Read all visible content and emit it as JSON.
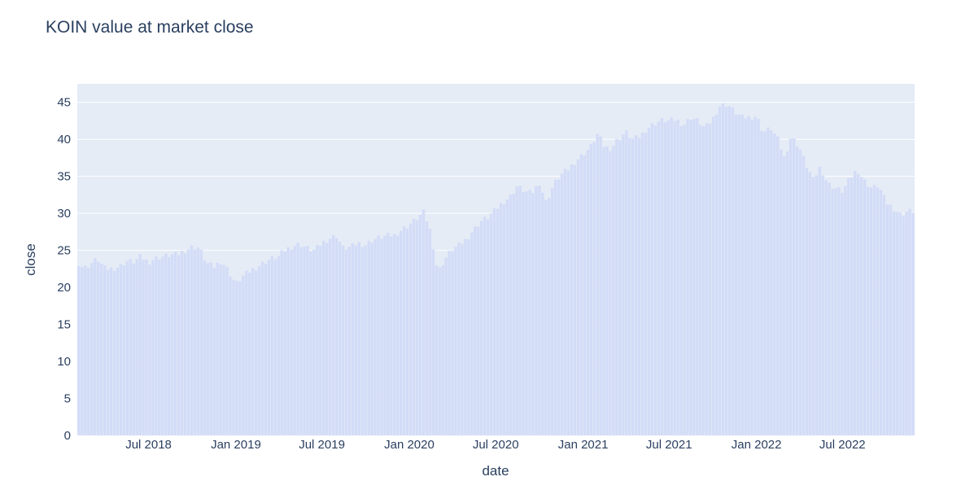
{
  "chart_data": {
    "type": "bar",
    "title": "KOIN value at market close",
    "xlabel": "date",
    "ylabel": "close",
    "xlim": [
      "2018-02-01",
      "2022-11-30"
    ],
    "ylim": [
      0,
      47.5
    ],
    "grid": true,
    "legend": "none",
    "colors": {
      "plot_bg": "#e5ecf6",
      "bar": "#d3dcf7",
      "bar_stroke": "#e5ecf6",
      "grid": "#ffffff",
      "text": "#2a3f5f"
    },
    "x_ticks": [
      {
        "date": "2018-07-01",
        "label": "Jul 2018"
      },
      {
        "date": "2019-01-01",
        "label": "Jan 2019"
      },
      {
        "date": "2019-07-01",
        "label": "Jul 2019"
      },
      {
        "date": "2020-01-01",
        "label": "Jan 2020"
      },
      {
        "date": "2020-07-01",
        "label": "Jul 2020"
      },
      {
        "date": "2021-01-01",
        "label": "Jan 2021"
      },
      {
        "date": "2021-07-01",
        "label": "Jul 2021"
      },
      {
        "date": "2022-01-01",
        "label": "Jan 2022"
      },
      {
        "date": "2022-07-01",
        "label": "Jul 2022"
      }
    ],
    "y_ticks": [
      0,
      5,
      10,
      15,
      20,
      25,
      30,
      35,
      40,
      45
    ],
    "series": [
      {
        "x": [
          "2018-02-01",
          "2018-02-15",
          "2018-03-01",
          "2018-03-15",
          "2018-04-01",
          "2018-04-15",
          "2018-05-01",
          "2018-05-15",
          "2018-06-01",
          "2018-06-15",
          "2018-07-01",
          "2018-07-15",
          "2018-08-01",
          "2018-08-15",
          "2018-09-01",
          "2018-09-15",
          "2018-10-01",
          "2018-10-15",
          "2018-11-01",
          "2018-11-15",
          "2018-12-01",
          "2018-12-15",
          "2019-01-01",
          "2019-01-15",
          "2019-02-01",
          "2019-02-15",
          "2019-03-01",
          "2019-03-15",
          "2019-04-01",
          "2019-04-15",
          "2019-05-01",
          "2019-05-15",
          "2019-06-01",
          "2019-06-15",
          "2019-07-01",
          "2019-07-15",
          "2019-08-01",
          "2019-08-15",
          "2019-09-01",
          "2019-09-15",
          "2019-10-01",
          "2019-10-15",
          "2019-11-01",
          "2019-11-15",
          "2019-12-01",
          "2019-12-15",
          "2020-01-01",
          "2020-01-15",
          "2020-02-01",
          "2020-02-15",
          "2020-03-01",
          "2020-03-15",
          "2020-04-01",
          "2020-04-15",
          "2020-05-01",
          "2020-05-15",
          "2020-06-01",
          "2020-06-15",
          "2020-07-01",
          "2020-07-15",
          "2020-08-01",
          "2020-08-15",
          "2020-09-01",
          "2020-09-15",
          "2020-10-01",
          "2020-10-15",
          "2020-11-01",
          "2020-11-15",
          "2020-12-01",
          "2020-12-15",
          "2021-01-01",
          "2021-01-15",
          "2021-02-01",
          "2021-02-15",
          "2021-03-01",
          "2021-03-15",
          "2021-04-01",
          "2021-04-15",
          "2021-05-01",
          "2021-05-15",
          "2021-06-01",
          "2021-06-15",
          "2021-07-01",
          "2021-07-15",
          "2021-08-01",
          "2021-08-15",
          "2021-09-01",
          "2021-09-15",
          "2021-10-01",
          "2021-10-15",
          "2021-11-01",
          "2021-11-15",
          "2021-12-01",
          "2021-12-15",
          "2022-01-01",
          "2022-01-15",
          "2022-02-01",
          "2022-02-15",
          "2022-03-01",
          "2022-03-15",
          "2022-04-01",
          "2022-04-15",
          "2022-05-01",
          "2022-05-15",
          "2022-06-01",
          "2022-06-15",
          "2022-07-01",
          "2022-07-15",
          "2022-08-01",
          "2022-08-15",
          "2022-09-01",
          "2022-09-15",
          "2022-10-01",
          "2022-10-15",
          "2022-11-01",
          "2022-11-15"
        ],
        "close": [
          23.5,
          22.6,
          23.2,
          23.9,
          22.5,
          22.6,
          22.8,
          23.6,
          23.5,
          24.2,
          23.4,
          24.0,
          24.2,
          24.4,
          24.5,
          25.0,
          25.5,
          25.4,
          23.3,
          22.8,
          23.6,
          22.4,
          20.5,
          21.5,
          22.3,
          22.8,
          23.4,
          23.9,
          24.2,
          25.1,
          25.6,
          25.9,
          25.3,
          25.0,
          26.0,
          26.6,
          27.0,
          25.3,
          25.5,
          26.0,
          25.8,
          26.4,
          26.8,
          27.0,
          27.1,
          27.8,
          28.5,
          29.2,
          30.2,
          27.5,
          22.0,
          23.8,
          25.2,
          25.7,
          26.6,
          27.8,
          29.0,
          29.5,
          30.5,
          31.5,
          32.3,
          33.7,
          33.0,
          32.7,
          34.2,
          31.5,
          34.0,
          35.2,
          36.0,
          37.0,
          38.0,
          38.8,
          40.8,
          39.0,
          38.8,
          40.0,
          41.0,
          40.0,
          40.4,
          41.5,
          42.2,
          42.6,
          42.5,
          42.7,
          42.0,
          43.0,
          42.5,
          41.5,
          42.8,
          44.5,
          44.8,
          43.8,
          43.0,
          43.0,
          43.2,
          41.0,
          41.5,
          40.0,
          37.5,
          40.4,
          39.0,
          36.7,
          34.5,
          36.3,
          34.0,
          33.5,
          33.0,
          34.5,
          36.0,
          34.5,
          33.4,
          33.8,
          31.5,
          30.8,
          29.8,
          30.3
        ]
      }
    ]
  }
}
